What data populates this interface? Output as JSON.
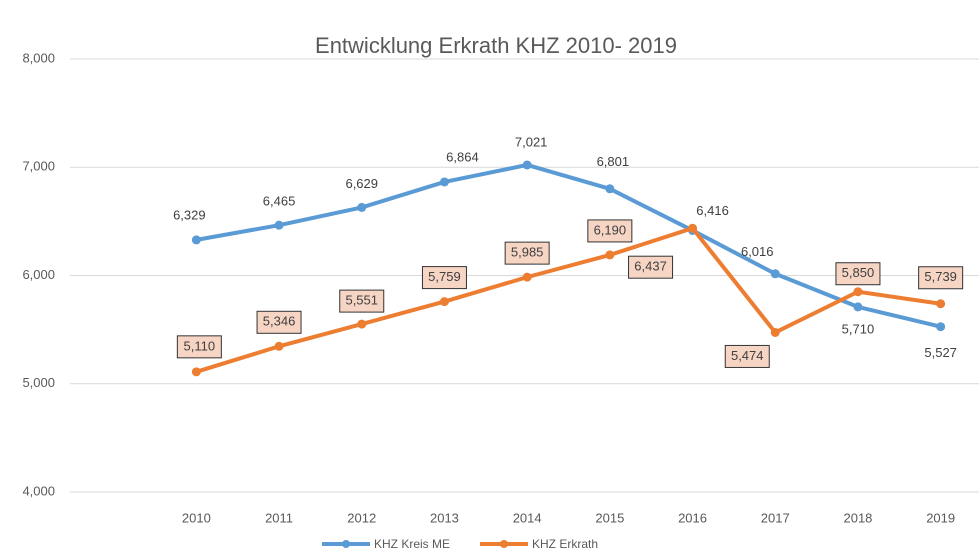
{
  "chart_data": {
    "type": "line",
    "title": "Entwicklung Erkrath KHZ 2010- 2019",
    "categories": [
      "2010",
      "2011",
      "2012",
      "2013",
      "2014",
      "2015",
      "2016",
      "2017",
      "2018",
      "2019"
    ],
    "series": [
      {
        "name": "KHZ Kreis ME",
        "color": "#5b9bd5",
        "values": [
          6329,
          6465,
          6629,
          6864,
          7021,
          6801,
          6416,
          6016,
          5710,
          5527
        ],
        "value_labels": [
          "6,329",
          "6,465",
          "6,629",
          "6,864",
          "7,021",
          "6,801",
          "6,416",
          "6,016",
          "5,710",
          "5,527"
        ]
      },
      {
        "name": "KHZ Erkrath",
        "color": "#ed7d31",
        "values": [
          5110,
          5346,
          5551,
          5759,
          5985,
          6190,
          6437,
          5474,
          5850,
          5739
        ],
        "value_labels": [
          "5,110",
          "5,346",
          "5,551",
          "5,759",
          "5,985",
          "6,190",
          "6,437",
          "5,474",
          "5,850",
          "5,739"
        ]
      }
    ],
    "ylim": [
      4000,
      8000
    ],
    "yticks": [
      {
        "value": 4000,
        "label": "4,000"
      },
      {
        "value": 5000,
        "label": "5,000"
      },
      {
        "value": 6000,
        "label": "6,000"
      },
      {
        "value": 7000,
        "label": "7,000"
      },
      {
        "value": 8000,
        "label": "8,000"
      }
    ],
    "grid": true,
    "legend": "bottom"
  }
}
